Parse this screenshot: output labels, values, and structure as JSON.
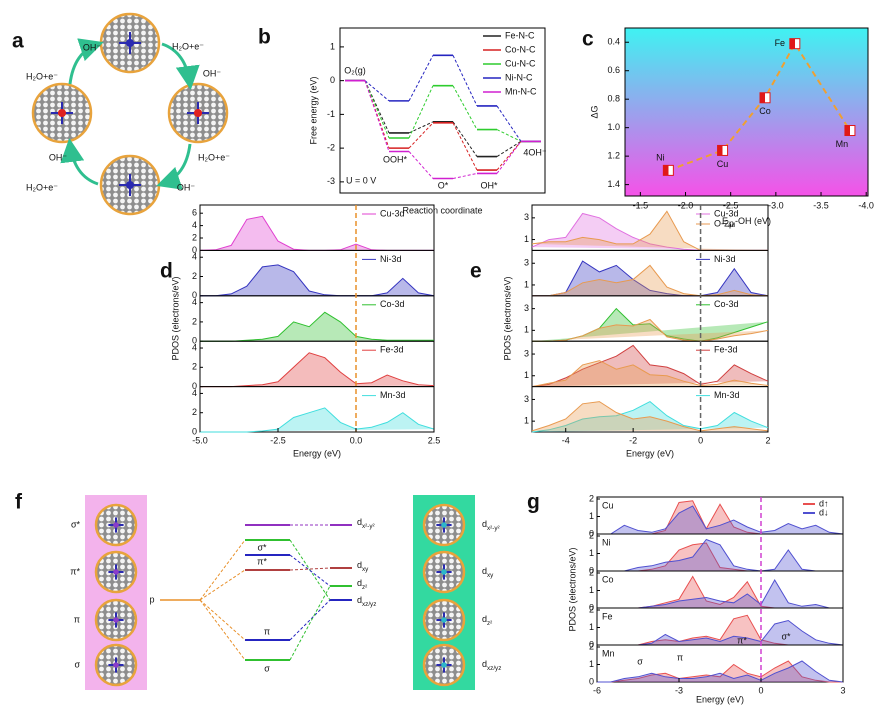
{
  "panel_labels": [
    "a",
    "b",
    "c",
    "d",
    "e",
    "f",
    "g"
  ],
  "panel_a": {
    "labels": [
      "OH⁻",
      "H₂O+e⁻",
      "H₂O+e⁻",
      "OH⁻",
      "OH⁻",
      "H₂O+e⁻",
      "H₂O+e⁻",
      "OH⁻"
    ]
  },
  "chart_data": [
    {
      "type": "energy",
      "ylabel": "Free energy (eV)",
      "xlabel": "Reaction coordinate",
      "annotation": "U = 0 V",
      "categories": [
        "O₂(g)",
        "OOH*",
        "O*",
        "OH*",
        "4OH⁻"
      ],
      "series": [
        {
          "name": "Fe-N-C",
          "color": "#222222",
          "values": [
            0,
            -1.55,
            -1.22,
            -2.25,
            -1.8
          ]
        },
        {
          "name": "Co-N-C",
          "color": "#d62020",
          "values": [
            0,
            -2.0,
            -1.25,
            -2.65,
            -1.8
          ]
        },
        {
          "name": "Cu-N-C",
          "color": "#2ecc2e",
          "values": [
            0,
            -1.7,
            -0.15,
            -1.45,
            -1.8
          ]
        },
        {
          "name": "Ni-N-C",
          "color": "#2525c0",
          "values": [
            0,
            -0.6,
            0.75,
            -0.75,
            -1.8
          ]
        },
        {
          "name": "Mn-N-C",
          "color": "#d020d0",
          "values": [
            0,
            -2.1,
            -2.9,
            -2.75,
            -1.8
          ]
        }
      ],
      "ylim": [
        -3.33,
        1.56
      ],
      "yticks": [
        -3,
        -2,
        -1,
        0,
        1
      ],
      "legend": "top-right"
    },
    {
      "type": "scatter",
      "ylabel": "ΔG",
      "xlabel": {
        "main": "E",
        "sub": "ad",
        "rest": "-OH (eV)"
      },
      "categories": [
        "Ni",
        "Cu",
        "Co",
        "Fe",
        "Mn"
      ],
      "x": [
        -1.81,
        -2.41,
        -2.88,
        -3.21,
        -3.82
      ],
      "values": [
        1.3,
        1.16,
        0.79,
        0.41,
        1.02
      ],
      "xlim": [
        -1.33,
        -4.02
      ],
      "ylim": [
        1.48,
        0.3
      ],
      "xticks": [
        -1.5,
        {
          "value": -2,
          "label": "-2.0"
        },
        -2.5,
        {
          "value": -3,
          "label": "-3.0"
        },
        -3.5,
        {
          "value": -4,
          "label": "-4.0"
        }
      ],
      "yticks": [
        0.4,
        0.6,
        0.8,
        {
          "value": 1,
          "label": "1.0"
        },
        1.2,
        1.4
      ],
      "color": "#e01818",
      "trend_color": "#f0a030"
    },
    {
      "type": "pdos",
      "ylabel": "PDOS (electrons/eV)",
      "xlabel": "Energy (eV)",
      "x": [
        -5,
        -4.5,
        -4,
        -3.5,
        -3,
        -2.5,
        -2,
        -1.5,
        -1,
        -0.5,
        0,
        0.5,
        1,
        1.5,
        2,
        2.5
      ],
      "xlim": [
        -5,
        2.5
      ],
      "xticks": [
        {
          "value": -5,
          "label": "-5.0"
        },
        -2.5,
        {
          "value": 0,
          "label": "0.0"
        },
        2.5
      ],
      "fermi_level": 0,
      "fermi_color": "#e8902a",
      "panels": [
        {
          "ylim": [
            0,
            7
          ],
          "yticks": [
            0,
            2,
            4,
            6
          ],
          "series": [
            {
              "name": "Cu-3d",
              "color": "#e040d0",
              "values": [
                0,
                0.1,
                0.8,
                5,
                5.5,
                1.5,
                0.2,
                0,
                0,
                0.1,
                1.0,
                0.1,
                0,
                0,
                0,
                0
              ]
            }
          ]
        },
        {
          "ylim": [
            0,
            4.5
          ],
          "yticks": [
            0,
            2,
            4
          ],
          "series": [
            {
              "name": "Ni-3d",
              "color": "#3535c0",
              "values": [
                0,
                0,
                0.2,
                1,
                3,
                3.2,
                2.5,
                0.5,
                0.1,
                0,
                0,
                0,
                0.3,
                1.8,
                0.3,
                0
              ]
            }
          ]
        },
        {
          "ylim": [
            0,
            4.5
          ],
          "yticks": [
            0,
            2,
            4
          ],
          "series": [
            {
              "name": "Co-3d",
              "color": "#30c030",
              "values": [
                0,
                0,
                0,
                0.1,
                0.2,
                0.5,
                2,
                1.5,
                3,
                2,
                0.5,
                0.2,
                0.1,
                0.1,
                0.1,
                0.1
              ]
            }
          ]
        },
        {
          "ylim": [
            0,
            4.5
          ],
          "yticks": [
            0,
            2,
            4
          ],
          "series": [
            {
              "name": "Fe-3d",
              "color": "#e04040",
              "values": [
                0,
                0,
                0,
                0.1,
                0.2,
                0.5,
                2,
                3.5,
                3,
                1.5,
                0.3,
                0.4,
                1.2,
                0.6,
                0.2,
                0.1
              ]
            }
          ]
        },
        {
          "ylim": [
            0,
            4.5
          ],
          "yticks": [
            0,
            2,
            4
          ],
          "series": [
            {
              "name": "Mn-3d",
              "color": "#40dede",
              "values": [
                0,
                0,
                0,
                0,
                0.1,
                0.3,
                1.5,
                2,
                2.5,
                1,
                0.3,
                0.5,
                1,
                2,
                0.8,
                0.3
              ]
            }
          ]
        }
      ]
    },
    {
      "type": "pdos",
      "ylabel": "PDOS (electrons/eV)",
      "xlabel": "Energy (eV)",
      "x": [
        -5,
        -4.5,
        -4,
        -3.5,
        -3,
        -2.5,
        -2,
        -1.5,
        -1,
        -0.5,
        0,
        0.5,
        1,
        1.5,
        2
      ],
      "xlim": [
        -5,
        2
      ],
      "xticks": [
        -4,
        -2,
        0,
        2
      ],
      "fermi_level": 0,
      "fermi_color": "#666666",
      "panels": [
        {
          "ylim": [
            0,
            4
          ],
          "yticks": [
            1,
            3
          ],
          "series": [
            {
              "name": "Cu-3d",
              "color": "#e070e0",
              "values": [
                0.3,
                1,
                1.2,
                3.4,
                3,
                2,
                1.2,
                0.6,
                0.3,
                0.1,
                0,
                0,
                0,
                0,
                0
              ]
            },
            {
              "name": "O-2p",
              "color": "#e89a50",
              "values": [
                0.6,
                0.8,
                0.8,
                1.2,
                1,
                0.6,
                0.6,
                1.5,
                3.6,
                0.8,
                0,
                0,
                0,
                0,
                0
              ]
            }
          ]
        },
        {
          "ylim": [
            0,
            4
          ],
          "yticks": [
            1,
            3
          ],
          "series": [
            {
              "name": "Ni-3d",
              "color": "#3535c0",
              "values": [
                0,
                0,
                0.3,
                3.2,
                2.2,
                2.8,
                1.5,
                0.5,
                0.2,
                0,
                0,
                0.3,
                2.5,
                0.3,
                0
              ]
            },
            {
              "color": "#e89a50",
              "values": [
                0,
                0,
                0.3,
                1.2,
                1.5,
                1.2,
                1.5,
                2.8,
                0.8,
                0.2,
                0,
                0.1,
                0.5,
                0.1,
                0
              ]
            }
          ]
        },
        {
          "ylim": [
            0,
            4
          ],
          "yticks": [
            1,
            3
          ],
          "series": [
            {
              "name": "Co-3d",
              "color": "#30c030",
              "values": [
                0,
                0,
                0.1,
                0.5,
                1.2,
                3,
                1.5,
                1.6,
                0.5,
                0.2,
                0,
                0.3,
                0.8,
                1.3,
                1.8
              ]
            },
            {
              "color": "#e89a50",
              "values": [
                0,
                0,
                0.1,
                0.5,
                1.2,
                1.5,
                1.4,
                2,
                0.4,
                0.1,
                0,
                0.2,
                0.5,
                0.7,
                1
              ]
            }
          ]
        },
        {
          "ylim": [
            0,
            4
          ],
          "yticks": [
            1,
            3
          ],
          "series": [
            {
              "name": "Fe-3d",
              "color": "#d04040",
              "values": [
                0,
                0.2,
                0.8,
                1.6,
                2.2,
                2.8,
                3.8,
                2,
                1.8,
                1.2,
                0.2,
                0.5,
                2,
                1.2,
                0.5
              ]
            },
            {
              "color": "#e89a50",
              "values": [
                0,
                0.3,
                0.6,
                2,
                2.4,
                1.6,
                2,
                1.1,
                1,
                0.5,
                0.1,
                0.2,
                0.6,
                0.3,
                0.1
              ]
            }
          ]
        },
        {
          "ylim": [
            0,
            4
          ],
          "yticks": [
            1,
            3
          ],
          "series": [
            {
              "name": "Mn-3d",
              "color": "#40dede",
              "values": [
                0,
                0.2,
                0.6,
                1.2,
                1.4,
                1.5,
                2,
                2.8,
                1.5,
                0.6,
                0.3,
                0.6,
                1.8,
                1,
                0.4
              ]
            },
            {
              "color": "#e89a50",
              "values": [
                0.1,
                0.6,
                1.2,
                2.6,
                2.8,
                1.8,
                1.2,
                1.4,
                1,
                0.5,
                0.1,
                0.3,
                0.5,
                0.3,
                0.1
              ]
            }
          ]
        }
      ]
    },
    {
      "type": "pdos",
      "ylabel": "PDOS (electrons/eV)",
      "xlabel": "Energy (eV)",
      "x": [
        -6,
        -5.5,
        -5,
        -4.5,
        -4,
        -3.5,
        -3,
        -2.5,
        -2,
        -1.5,
        -1,
        -0.5,
        0,
        0.5,
        1,
        1.5,
        2,
        2.5,
        3
      ],
      "xlim": [
        -6,
        3
      ],
      "xticks": [
        -6,
        -3,
        0,
        3
      ],
      "fermi_level": 0,
      "fermi_color": "#d040d0",
      "legend": [
        {
          "name": "d↑",
          "color": "#e85050"
        },
        {
          "name": "d↓",
          "color": "#5050d0"
        }
      ],
      "annotations": [
        "σ",
        "π",
        "π*",
        "σ*"
      ],
      "panels": [
        {
          "label": "Cu",
          "ylim": [
            0,
            2
          ],
          "yticks": [
            0,
            1,
            2
          ],
          "series": [
            {
              "values": [
                0,
                0,
                0,
                0,
                0,
                0.2,
                1.8,
                1.9,
                0.3,
                1.7,
                0.4,
                0.1,
                0,
                0,
                0,
                0,
                0,
                0,
                0
              ]
            },
            {
              "values": [
                0,
                0,
                0.5,
                0.2,
                0.1,
                0.3,
                1.2,
                1.6,
                0.3,
                0.5,
                0.8,
                0.4,
                0.1,
                0.2,
                0.6,
                0.3,
                0.5,
                0.1,
                0
              ]
            }
          ]
        },
        {
          "label": "Ni",
          "ylim": [
            0,
            2
          ],
          "yticks": [
            0,
            1,
            2
          ],
          "series": [
            {
              "values": [
                0,
                0,
                0,
                0,
                0.1,
                0.3,
                1.2,
                1.5,
                1.6,
                0.2,
                0.1,
                0,
                0,
                0,
                0,
                0,
                0,
                0,
                0
              ]
            },
            {
              "values": [
                0,
                0,
                0,
                0.2,
                0.3,
                0.5,
                0.6,
                0.8,
                1.8,
                1.5,
                0.3,
                0.1,
                0,
                0.1,
                1.2,
                0.1,
                0,
                0,
                0
              ]
            }
          ]
        },
        {
          "label": "Co",
          "ylim": [
            0,
            2
          ],
          "yticks": [
            0,
            1,
            2
          ],
          "series": [
            {
              "values": [
                0,
                0,
                0,
                0,
                0.1,
                0.3,
                0.5,
                1.8,
                0.4,
                0.2,
                0.6,
                1.5,
                0.1,
                0,
                0,
                0,
                0,
                0,
                0
              ]
            },
            {
              "values": [
                0,
                0,
                0,
                0,
                0.1,
                0.2,
                0.4,
                0.5,
                0.6,
                0.4,
                0.3,
                0.8,
                0.2,
                1.6,
                0.3,
                0.1,
                0.2,
                0,
                0
              ]
            }
          ]
        },
        {
          "label": "Fe",
          "ylim": [
            0,
            2
          ],
          "yticks": [
            0,
            1,
            2
          ],
          "series": [
            {
              "values": [
                0,
                0,
                0,
                0,
                0.2,
                0.3,
                0.2,
                0.4,
                0.5,
                0.3,
                1.5,
                1.7,
                0.3,
                0.1,
                0,
                0,
                0,
                0,
                0
              ]
            },
            {
              "values": [
                0,
                0,
                0,
                0,
                0.1,
                0.6,
                0.2,
                0.3,
                0.4,
                0.2,
                0.5,
                0.4,
                0.2,
                1.2,
                1.4,
                0.8,
                0.3,
                0.1,
                0
              ]
            }
          ]
        },
        {
          "label": "Mn",
          "ylim": [
            0,
            2
          ],
          "yticks": [
            0,
            1,
            2
          ],
          "series": [
            {
              "values": [
                0,
                0,
                0.1,
                0.2,
                0.4,
                0.5,
                0.2,
                0.3,
                0.4,
                0.3,
                1,
                0.5,
                0.3,
                0.8,
                1.2,
                0.3,
                0.1,
                0,
                0
              ]
            },
            {
              "values": [
                0,
                0,
                0.2,
                0.3,
                0.5,
                0.3,
                0.2,
                0.2,
                0.3,
                0.5,
                0.2,
                0.4,
                0.1,
                0.5,
                0.8,
                1.2,
                0.6,
                0.1,
                0
              ]
            }
          ]
        }
      ]
    }
  ],
  "panel_f": {
    "left_labels": [
      "σ*",
      "π*",
      "π",
      "σ"
    ],
    "p_label": "p",
    "mid_labels": [
      "σ*",
      "π*",
      "π",
      "σ"
    ],
    "d_levels": [
      {
        "main": "d",
        "sub": "x²-y²"
      },
      {
        "main": "d",
        "sub": "xy"
      },
      {
        "main": "d",
        "sub": "z²"
      },
      {
        "main": "d",
        "sub": "xz/yz"
      }
    ],
    "right_labels": [
      {
        "main": "d",
        "sub": "x²-y²"
      },
      {
        "main": "d",
        "sub": "xy"
      },
      {
        "main": "d",
        "sub": "z²"
      },
      {
        "main": "d",
        "sub": "xz/yz"
      }
    ]
  }
}
